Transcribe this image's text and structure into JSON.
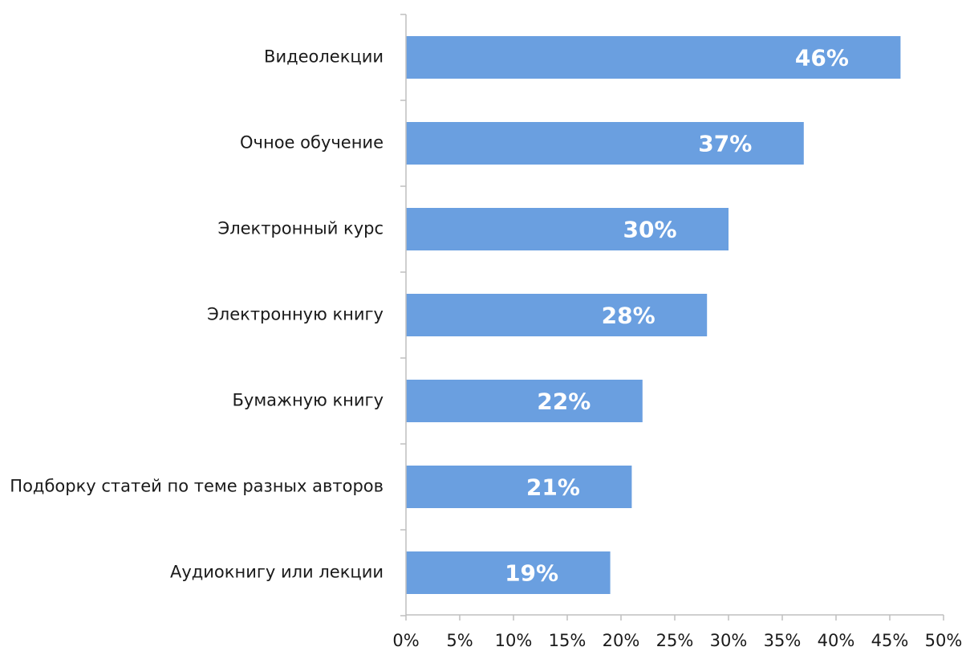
{
  "chart_data": {
    "type": "bar",
    "orientation": "horizontal",
    "categories": [
      "Видеолекции",
      "Очное обучение",
      "Электронный курс",
      "Электронную книгу",
      "Бумажную книгу",
      "Подборку статей по теме разных авторов",
      "Аудиокнигу или лекции"
    ],
    "values": [
      46,
      37,
      30,
      28,
      22,
      21,
      19
    ],
    "data_labels": [
      "46%",
      "37%",
      "30%",
      "28%",
      "22%",
      "21%",
      "19%"
    ],
    "xlim": [
      0,
      50
    ],
    "x_ticks": [
      0,
      5,
      10,
      15,
      20,
      25,
      30,
      35,
      40,
      45,
      50
    ],
    "x_tick_labels": [
      "0%",
      "5%",
      "10%",
      "15%",
      "20%",
      "25%",
      "30%",
      "35%",
      "40%",
      "45%",
      "50%"
    ],
    "bar_color": "#6a9fe0",
    "title": "",
    "xlabel": "",
    "ylabel": "",
    "grid": false,
    "legend": "none"
  }
}
